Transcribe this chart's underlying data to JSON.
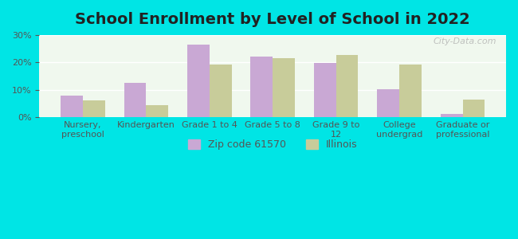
{
  "title": "School Enrollment by Level of School in 2022",
  "categories": [
    "Nursery,\npreschool",
    "Kindergarten",
    "Grade 1 to 4",
    "Grade 5 to 8",
    "Grade 9 to\n12",
    "College\nundergrad",
    "Graduate or\nprofessional"
  ],
  "zip_values": [
    8.0,
    12.5,
    26.5,
    22.0,
    19.8,
    10.2,
    1.2
  ],
  "illinois_values": [
    6.2,
    4.5,
    19.2,
    21.5,
    22.8,
    19.3,
    6.3
  ],
  "zip_color": "#c9a8d4",
  "illinois_color": "#c8cc9a",
  "background_outer": "#00e5e5",
  "background_inner": "#f0f8ee",
  "ylim": [
    0,
    30
  ],
  "yticks": [
    0,
    10,
    20,
    30
  ],
  "bar_width": 0.35,
  "legend_labels": [
    "Zip code 61570",
    "Illinois"
  ],
  "watermark": "City-Data.com",
  "title_fontsize": 14,
  "axis_label_fontsize": 8,
  "legend_fontsize": 9,
  "tick_fontsize": 8
}
